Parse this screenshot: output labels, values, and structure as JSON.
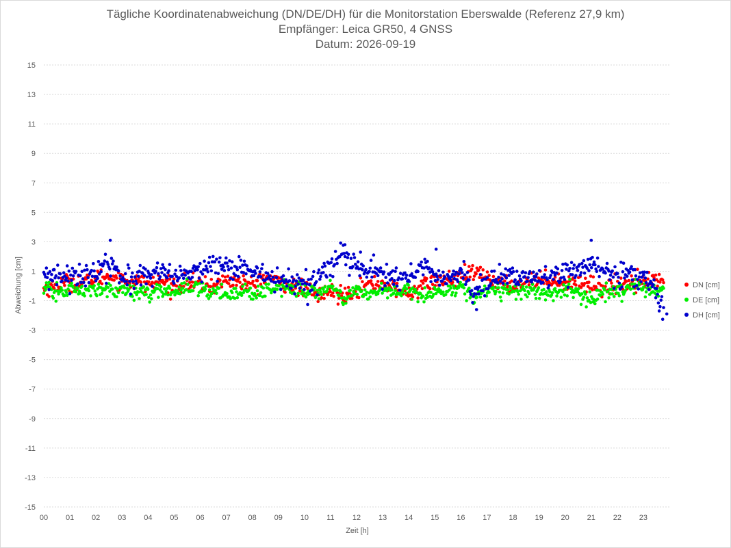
{
  "header": {
    "title": "Tägliche Koordinatenabweichung (DN/DE/DH) für die Monitorstation Eberswalde (Referenz 27,9 km)",
    "subtitle": "Empfänger: Leica GR50, 4 GNSS",
    "date": "Datum: 2026-09-19"
  },
  "chart_data": {
    "type": "scatter",
    "title": "Tägliche Koordinatenabweichung (DN/DE/DH) für die Monitorstation Eberswalde (Referenz 27,9 km)",
    "subtitle": "Empfänger: Leica GR50, 4 GNSS",
    "date_label": "Datum: 2026-09-19",
    "xlabel": "Zeit [h]",
    "ylabel": "Abweichung [cm]",
    "xlim": [
      0,
      24
    ],
    "ylim": [
      -15,
      15
    ],
    "x_ticks": [
      "00",
      "01",
      "02",
      "03",
      "04",
      "05",
      "06",
      "07",
      "08",
      "09",
      "10",
      "11",
      "12",
      "13",
      "14",
      "15",
      "16",
      "17",
      "18",
      "19",
      "20",
      "21",
      "22",
      "23"
    ],
    "y_ticks": [
      15,
      13,
      11,
      9,
      7,
      5,
      3,
      1,
      -1,
      -3,
      -5,
      -7,
      -9,
      -11,
      -13,
      -15
    ],
    "grid": true,
    "legend_position": "right",
    "sample_interval_h": 0.0333,
    "series": [
      {
        "name": "DN [cm]",
        "color": "#ff0000",
        "keypoints": [
          [
            0,
            -0.2
          ],
          [
            0.5,
            0.0
          ],
          [
            1,
            0.3
          ],
          [
            1.5,
            0.2
          ],
          [
            2,
            0.5
          ],
          [
            2.5,
            0.7
          ],
          [
            3,
            0.4
          ],
          [
            3.5,
            0.3
          ],
          [
            4,
            0.2
          ],
          [
            4.5,
            0.3
          ],
          [
            5,
            0.0
          ],
          [
            5.5,
            0.2
          ],
          [
            6,
            0.1
          ],
          [
            6.5,
            0.0
          ],
          [
            7,
            0.4
          ],
          [
            7.5,
            0.3
          ],
          [
            8,
            0.0
          ],
          [
            8.5,
            0.6
          ],
          [
            9,
            0.3
          ],
          [
            9.5,
            0.0
          ],
          [
            10,
            -0.2
          ],
          [
            10.5,
            -0.6
          ],
          [
            11,
            -0.4
          ],
          [
            11.5,
            -0.6
          ],
          [
            12,
            -0.2
          ],
          [
            12.5,
            0.1
          ],
          [
            13,
            0.2
          ],
          [
            13.5,
            -0.2
          ],
          [
            14,
            -0.6
          ],
          [
            14.5,
            0.0
          ],
          [
            15,
            0.3
          ],
          [
            15.5,
            0.4
          ],
          [
            16,
            0.5
          ],
          [
            16.5,
            0.9
          ],
          [
            17,
            0.6
          ],
          [
            17.5,
            0.2
          ],
          [
            18,
            0.0
          ],
          [
            18.5,
            0.3
          ],
          [
            19,
            0.4
          ],
          [
            19.5,
            0.5
          ],
          [
            20,
            0.2
          ],
          [
            20.5,
            0.3
          ],
          [
            21,
            0.1
          ],
          [
            21.5,
            -0.1
          ],
          [
            22,
            0.0
          ],
          [
            22.5,
            0.3
          ],
          [
            23,
            0.4
          ],
          [
            23.4,
            0.3
          ],
          [
            23.8,
            0.6
          ]
        ],
        "noise": 0.28
      },
      {
        "name": "DE [cm]",
        "color": "#00ee00",
        "keypoints": [
          [
            0,
            -0.2
          ],
          [
            0.5,
            -0.5
          ],
          [
            1,
            -0.2
          ],
          [
            1.5,
            -0.4
          ],
          [
            2,
            -0.3
          ],
          [
            2.5,
            -0.2
          ],
          [
            3,
            -0.3
          ],
          [
            3.5,
            -0.5
          ],
          [
            4,
            -0.4
          ],
          [
            4.5,
            -0.4
          ],
          [
            5,
            -0.3
          ],
          [
            5.5,
            -0.1
          ],
          [
            6,
            -0.2
          ],
          [
            6.5,
            -0.4
          ],
          [
            7,
            -0.5
          ],
          [
            7.5,
            -0.4
          ],
          [
            8,
            -0.5
          ],
          [
            8.5,
            -0.3
          ],
          [
            9,
            -0.1
          ],
          [
            9.5,
            -0.2
          ],
          [
            10,
            -0.4
          ],
          [
            10.5,
            -0.3
          ],
          [
            11,
            -0.2
          ],
          [
            11.5,
            -0.8
          ],
          [
            12,
            -0.4
          ],
          [
            12.5,
            -0.5
          ],
          [
            13,
            -0.3
          ],
          [
            13.5,
            -0.5
          ],
          [
            14,
            -0.3
          ],
          [
            14.5,
            -0.6
          ],
          [
            15,
            -0.5
          ],
          [
            15.5,
            -0.3
          ],
          [
            16,
            0.0
          ],
          [
            16.5,
            -0.8
          ],
          [
            17,
            -0.2
          ],
          [
            17.5,
            -0.3
          ],
          [
            18,
            -0.3
          ],
          [
            18.5,
            -0.4
          ],
          [
            19,
            -0.3
          ],
          [
            19.5,
            -0.6
          ],
          [
            20,
            -0.3
          ],
          [
            20.5,
            -0.5
          ],
          [
            21,
            -1.0
          ],
          [
            21.5,
            -0.4
          ],
          [
            22,
            -0.5
          ],
          [
            22.5,
            -0.2
          ],
          [
            23,
            -0.1
          ],
          [
            23.4,
            -0.3
          ],
          [
            23.8,
            -0.3
          ]
        ],
        "noise": 0.25
      },
      {
        "name": "DH [cm]",
        "color": "#0000cc",
        "keypoints": [
          [
            0,
            0.6
          ],
          [
            0.5,
            0.5
          ],
          [
            1,
            0.9
          ],
          [
            1.5,
            0.7
          ],
          [
            2,
            1.0
          ],
          [
            2.5,
            1.3
          ],
          [
            3,
            0.8
          ],
          [
            3.5,
            0.4
          ],
          [
            4,
            0.6
          ],
          [
            4.5,
            0.9
          ],
          [
            5,
            0.6
          ],
          [
            5.5,
            0.8
          ],
          [
            6,
            1.0
          ],
          [
            6.5,
            1.5
          ],
          [
            7,
            1.2
          ],
          [
            7.5,
            1.0
          ],
          [
            8,
            1.1
          ],
          [
            8.5,
            0.8
          ],
          [
            9,
            0.4
          ],
          [
            9.5,
            0.2
          ],
          [
            10,
            0.0
          ],
          [
            10.5,
            0.4
          ],
          [
            11,
            1.4
          ],
          [
            11.5,
            2.0
          ],
          [
            12,
            1.2
          ],
          [
            12.5,
            1.0
          ],
          [
            13,
            0.8
          ],
          [
            13.5,
            0.4
          ],
          [
            14,
            0.6
          ],
          [
            14.5,
            1.2
          ],
          [
            15,
            0.8
          ],
          [
            15.5,
            0.6
          ],
          [
            16,
            1.0
          ],
          [
            16.5,
            -0.4
          ],
          [
            17,
            0.2
          ],
          [
            17.5,
            0.4
          ],
          [
            18,
            0.8
          ],
          [
            18.5,
            0.6
          ],
          [
            19,
            0.5
          ],
          [
            19.5,
            0.7
          ],
          [
            20,
            0.8
          ],
          [
            20.5,
            1.2
          ],
          [
            21,
            1.5
          ],
          [
            21.5,
            0.9
          ],
          [
            22,
            0.6
          ],
          [
            22.5,
            0.9
          ],
          [
            23,
            0.6
          ],
          [
            23.4,
            -0.2
          ],
          [
            23.8,
            -1.5
          ]
        ],
        "noise": 0.4,
        "outliers": [
          [
            2.55,
            3.1
          ],
          [
            21.0,
            3.1
          ],
          [
            11.55,
            2.8
          ],
          [
            15.05,
            2.5
          ],
          [
            12.15,
            2.3
          ],
          [
            16.6,
            -1.6
          ],
          [
            23.9,
            -1.9
          ]
        ]
      }
    ]
  }
}
